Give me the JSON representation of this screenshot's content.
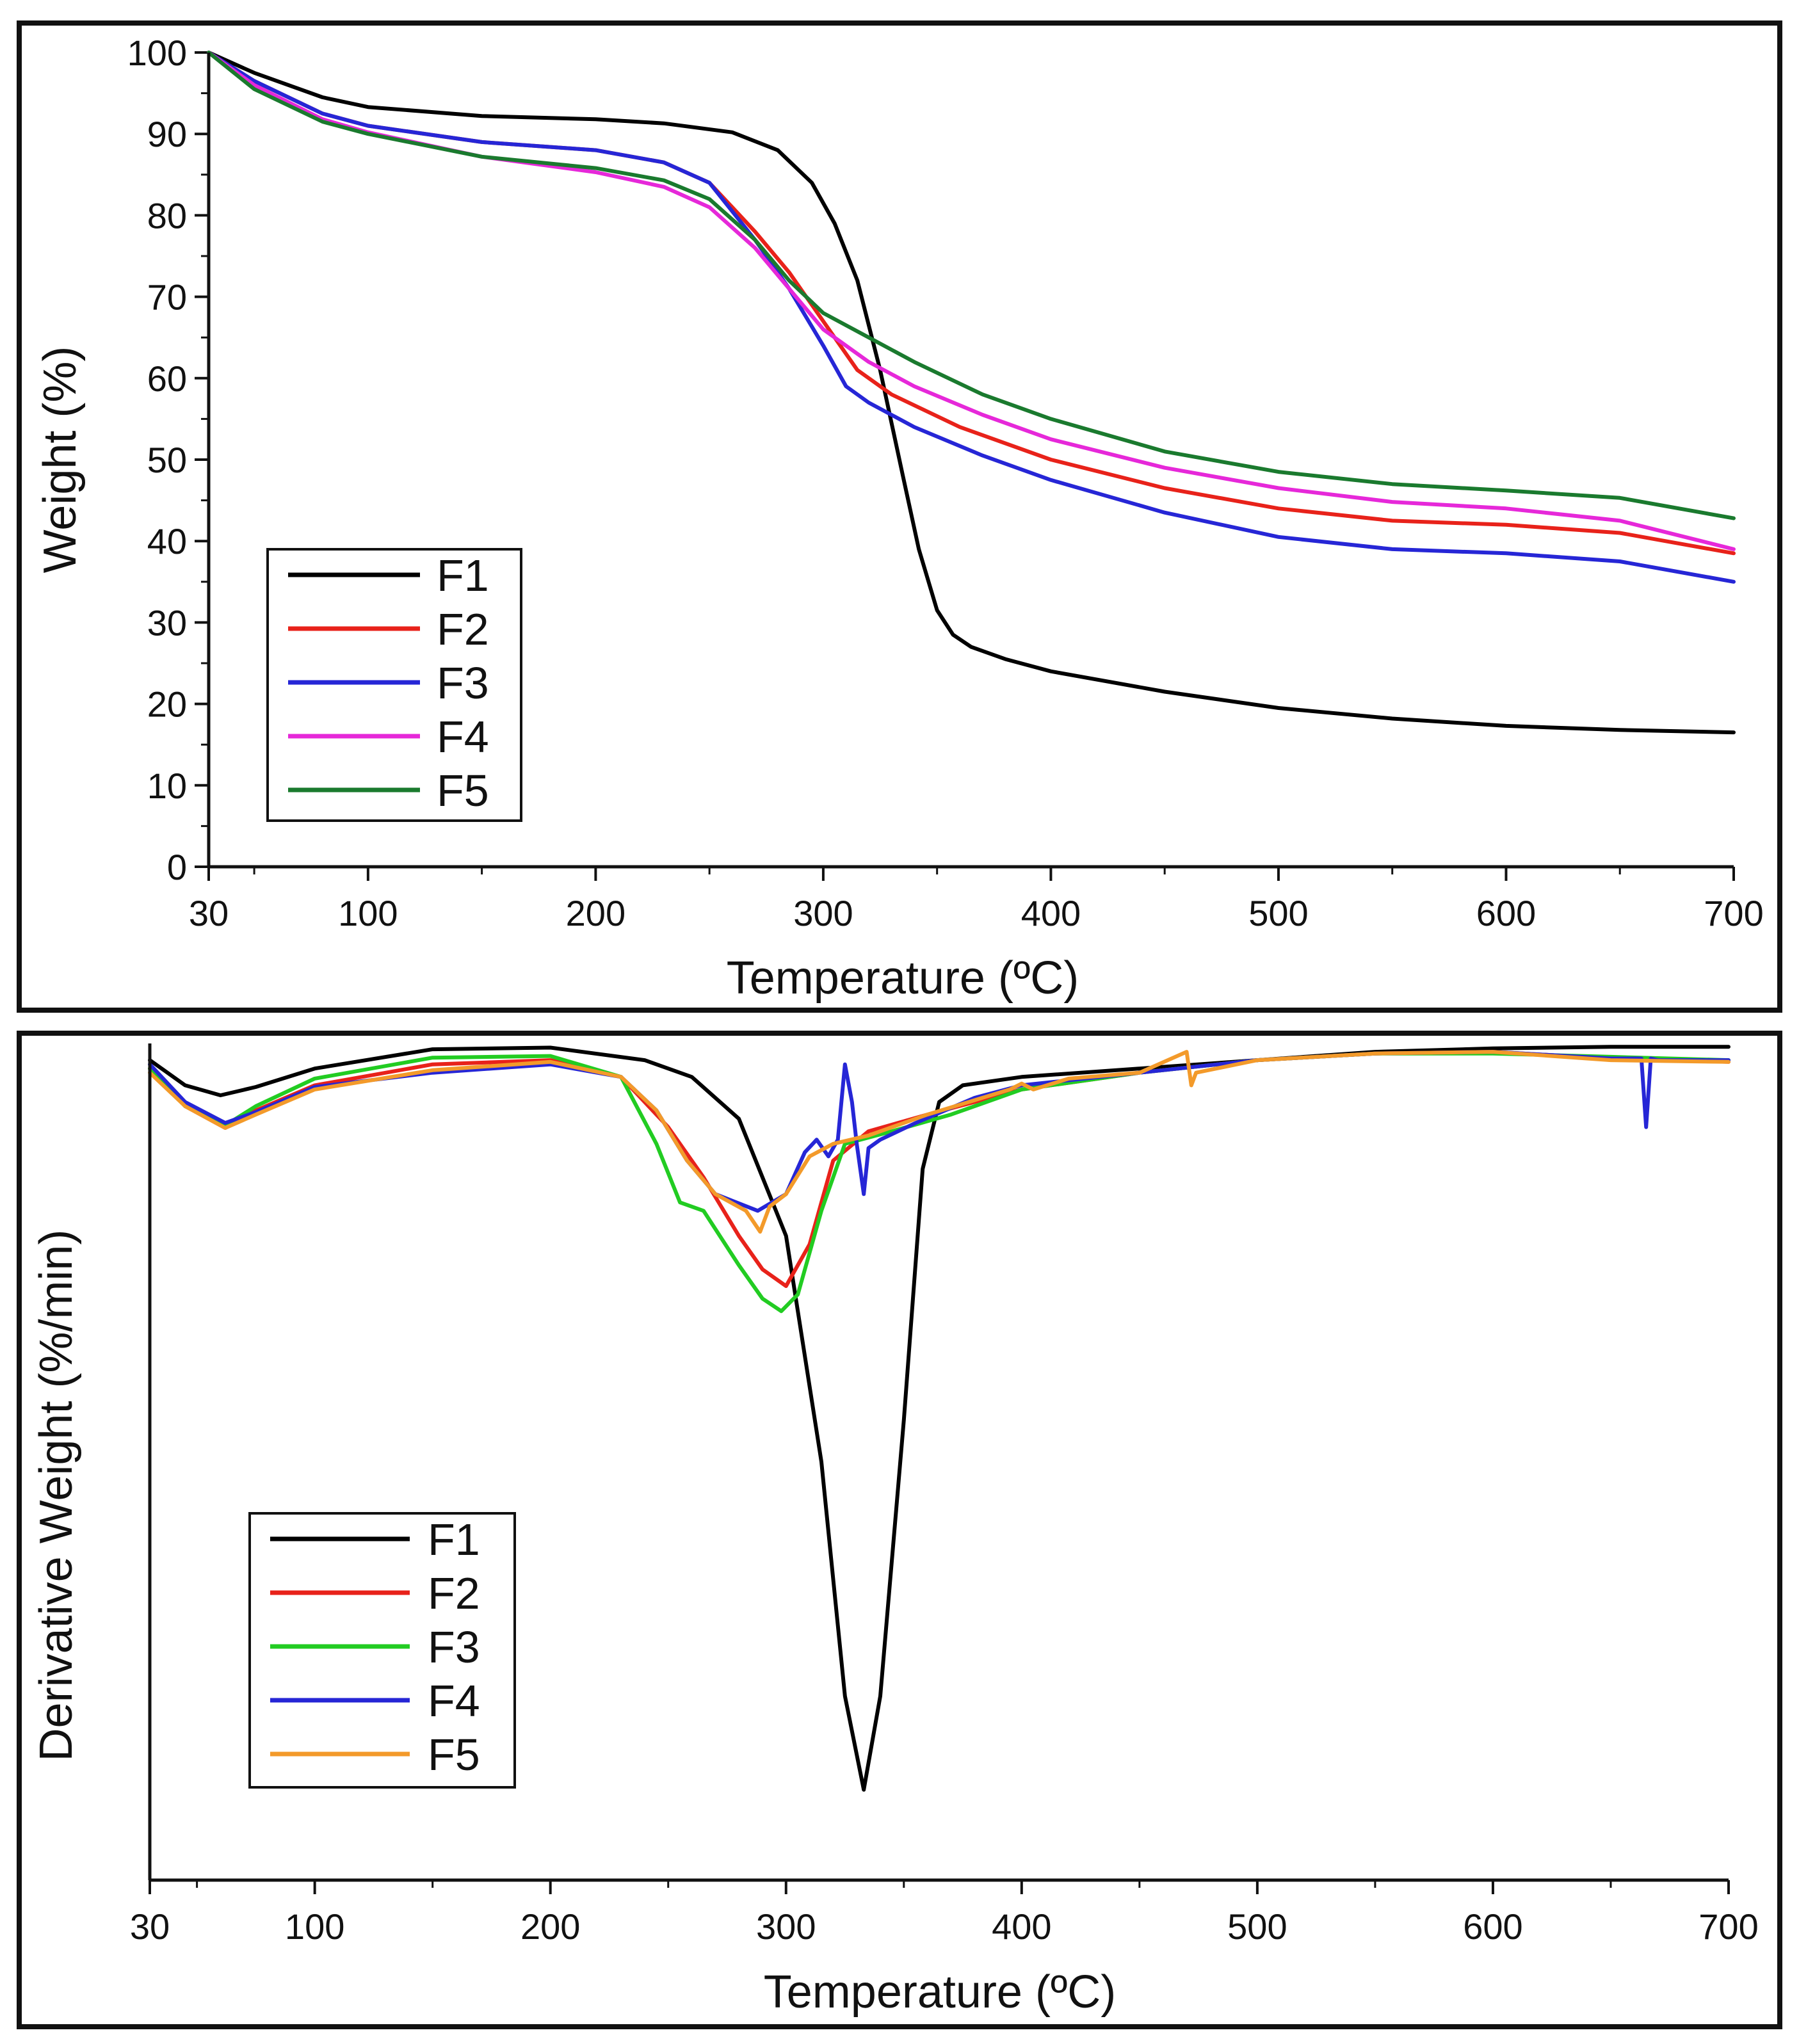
{
  "chart_data": [
    {
      "type": "line",
      "title": "",
      "xlabel": "Temperature (ºC)",
      "ylabel": "Weight (%)",
      "xlim": [
        30,
        700
      ],
      "ylim": [
        0,
        100
      ],
      "xticks": [
        "30",
        "100",
        "200",
        "300",
        "400",
        "500",
        "600",
        "700"
      ],
      "yticks": [
        "0",
        "10",
        "20",
        "30",
        "40",
        "50",
        "60",
        "70",
        "80",
        "90",
        "100"
      ],
      "grid": false,
      "legend": "bottom-left",
      "series": [
        {
          "name": "F1",
          "color": "#000000",
          "x": [
            30,
            50,
            80,
            100,
            150,
            200,
            230,
            260,
            280,
            295,
            305,
            315,
            325,
            335,
            342,
            350,
            357,
            365,
            380,
            400,
            450,
            500,
            550,
            600,
            650,
            700
          ],
          "y": [
            100,
            97.5,
            94.5,
            93.3,
            92.2,
            91.8,
            91.3,
            90.2,
            88,
            84,
            79,
            72,
            61,
            48,
            39,
            31.5,
            28.5,
            27,
            25.5,
            24,
            21.5,
            19.5,
            18.2,
            17.3,
            16.8,
            16.5
          ]
        },
        {
          "name": "F2",
          "color": "#e8221a",
          "x": [
            30,
            50,
            80,
            100,
            150,
            200,
            230,
            250,
            270,
            285,
            300,
            315,
            330,
            360,
            400,
            450,
            500,
            550,
            600,
            650,
            700
          ],
          "y": [
            100,
            96.5,
            92.5,
            91,
            89,
            88,
            86.5,
            84,
            78,
            73,
            67,
            61,
            58,
            54,
            50,
            46.5,
            44,
            42.5,
            42,
            41,
            38.5
          ]
        },
        {
          "name": "F3",
          "color": "#2626d6",
          "x": [
            30,
            50,
            80,
            100,
            150,
            200,
            230,
            250,
            270,
            285,
            300,
            310,
            320,
            340,
            370,
            400,
            450,
            500,
            550,
            600,
            650,
            700
          ],
          "y": [
            100,
            96.5,
            92.5,
            91,
            89,
            88,
            86.5,
            84,
            77,
            71,
            64,
            59,
            57,
            54,
            50.5,
            47.5,
            43.5,
            40.5,
            39,
            38.5,
            37.5,
            35
          ]
        },
        {
          "name": "F4",
          "color": "#e628d9",
          "x": [
            30,
            50,
            80,
            100,
            150,
            200,
            230,
            250,
            270,
            285,
            300,
            320,
            340,
            370,
            400,
            450,
            500,
            550,
            600,
            650,
            700
          ],
          "y": [
            100,
            96,
            91.8,
            90.2,
            87.2,
            85.3,
            83.5,
            81,
            76,
            71,
            66,
            62,
            59,
            55.5,
            52.5,
            49,
            46.5,
            44.8,
            44,
            42.5,
            39
          ]
        },
        {
          "name": "F5",
          "color": "#1a7a2e",
          "x": [
            30,
            50,
            80,
            100,
            150,
            200,
            230,
            250,
            270,
            285,
            300,
            320,
            340,
            370,
            400,
            450,
            500,
            550,
            600,
            650,
            700
          ],
          "y": [
            100,
            95.5,
            91.5,
            90,
            87.2,
            85.8,
            84.3,
            82,
            77,
            72,
            68,
            65,
            62,
            58,
            55,
            51,
            48.5,
            47,
            46.2,
            45.3,
            42.8
          ]
        }
      ]
    },
    {
      "type": "line",
      "title": "",
      "xlabel": "Temperature (ºC)",
      "ylabel": "Derivative Weight (%/min)",
      "xlim": [
        30,
        700
      ],
      "ylim": [
        0,
        100
      ],
      "xticks": [
        "30",
        "100",
        "200",
        "300",
        "400",
        "500",
        "600",
        "700"
      ],
      "yticks": [],
      "grid": false,
      "legend": "bottom-left",
      "series": [
        {
          "name": "F1",
          "color": "#000000",
          "x": [
            30,
            45,
            60,
            75,
            100,
            150,
            200,
            240,
            260,
            280,
            300,
            315,
            325,
            333,
            340,
            350,
            358,
            365,
            375,
            400,
            450,
            500,
            550,
            600,
            650,
            700
          ],
          "y": [
            98,
            95,
            93.8,
            94.8,
            97,
            99.3,
            99.5,
            98,
            96,
            91,
            77,
            50,
            22,
            10.8,
            22,
            55,
            85,
            93,
            95,
            96,
            97,
            98,
            99,
            99.4,
            99.6,
            99.6
          ]
        },
        {
          "name": "F2",
          "color": "#e8221a",
          "x": [
            30,
            45,
            62,
            75,
            100,
            150,
            200,
            230,
            250,
            265,
            280,
            290,
            300,
            310,
            320,
            335,
            360,
            400,
            450,
            500,
            550,
            600,
            650,
            700
          ],
          "y": [
            97,
            92.5,
            89.9,
            92,
            95,
            97.5,
            98,
            96,
            90,
            84,
            77,
            73,
            71,
            76,
            86,
            89.5,
            91.5,
            94.5,
            96.5,
            98,
            98.8,
            99,
            98.2,
            97.8
          ]
        },
        {
          "name": "F3",
          "color": "#22cc22",
          "x": [
            30,
            45,
            62,
            75,
            100,
            150,
            200,
            230,
            245,
            255,
            265,
            280,
            290,
            298,
            305,
            315,
            325,
            345,
            370,
            400,
            450,
            500,
            550,
            600,
            650,
            700
          ],
          "y": [
            97,
            92.5,
            90.2,
            92.5,
            95.8,
            98.3,
            98.5,
            96,
            88,
            81,
            80,
            73.5,
            69.5,
            68,
            70,
            80,
            88,
            89.5,
            91.5,
            94.5,
            96.5,
            98,
            98.8,
            98.8,
            98.4,
            98
          ]
        },
        {
          "name": "F4",
          "color": "#2626d6",
          "x": [
            30,
            45,
            62,
            75,
            100,
            150,
            200,
            230,
            245,
            258,
            270,
            288,
            300,
            308,
            313,
            318,
            322,
            325,
            328,
            330,
            333,
            335,
            340,
            355,
            380,
            400,
            450,
            500,
            550,
            600,
            650,
            663,
            665,
            667,
            670,
            700
          ],
          "y": [
            97.5,
            93,
            90.5,
            91.8,
            94.8,
            96.5,
            97.5,
            96,
            92,
            86,
            82,
            80,
            82,
            87,
            88.5,
            86.5,
            88.5,
            97.5,
            93,
            88,
            82,
            87.5,
            88.5,
            90.5,
            93.5,
            95,
            96.5,
            98,
            98.8,
            99,
            98.2,
            98.2,
            90,
            98.2,
            98,
            98
          ]
        },
        {
          "name": "F5",
          "color": "#f39a2a",
          "x": [
            30,
            45,
            62,
            75,
            100,
            150,
            200,
            230,
            245,
            258,
            270,
            283,
            289,
            293,
            300,
            310,
            320,
            335,
            360,
            395,
            400,
            405,
            420,
            450,
            470,
            472,
            474,
            500,
            550,
            600,
            650,
            700
          ],
          "y": [
            96.5,
            92.5,
            89.9,
            91.5,
            94.5,
            96.8,
            97.8,
            96,
            92,
            86,
            82,
            80,
            77.5,
            80.5,
            82,
            86.5,
            88,
            89,
            91.5,
            94.5,
            95.2,
            94.5,
            95.8,
            96.5,
            99,
            95,
            96.5,
            98,
            98.8,
            99,
            98,
            97.8
          ]
        }
      ]
    }
  ]
}
